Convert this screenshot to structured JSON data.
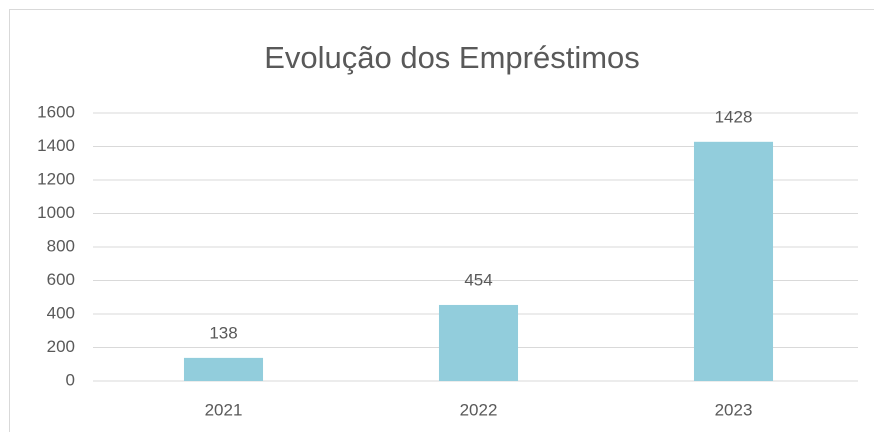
{
  "chart_data": {
    "type": "bar",
    "title": "Evolução dos Empréstimos",
    "categories": [
      "2021",
      "2022",
      "2023"
    ],
    "values": [
      138,
      454,
      1428
    ],
    "color": "#92cddc",
    "ylim": [
      0,
      1600
    ],
    "yticks": [
      0,
      200,
      400,
      600,
      800,
      1000,
      1200,
      1400,
      1600
    ],
    "grid": true,
    "data_labels": true
  }
}
